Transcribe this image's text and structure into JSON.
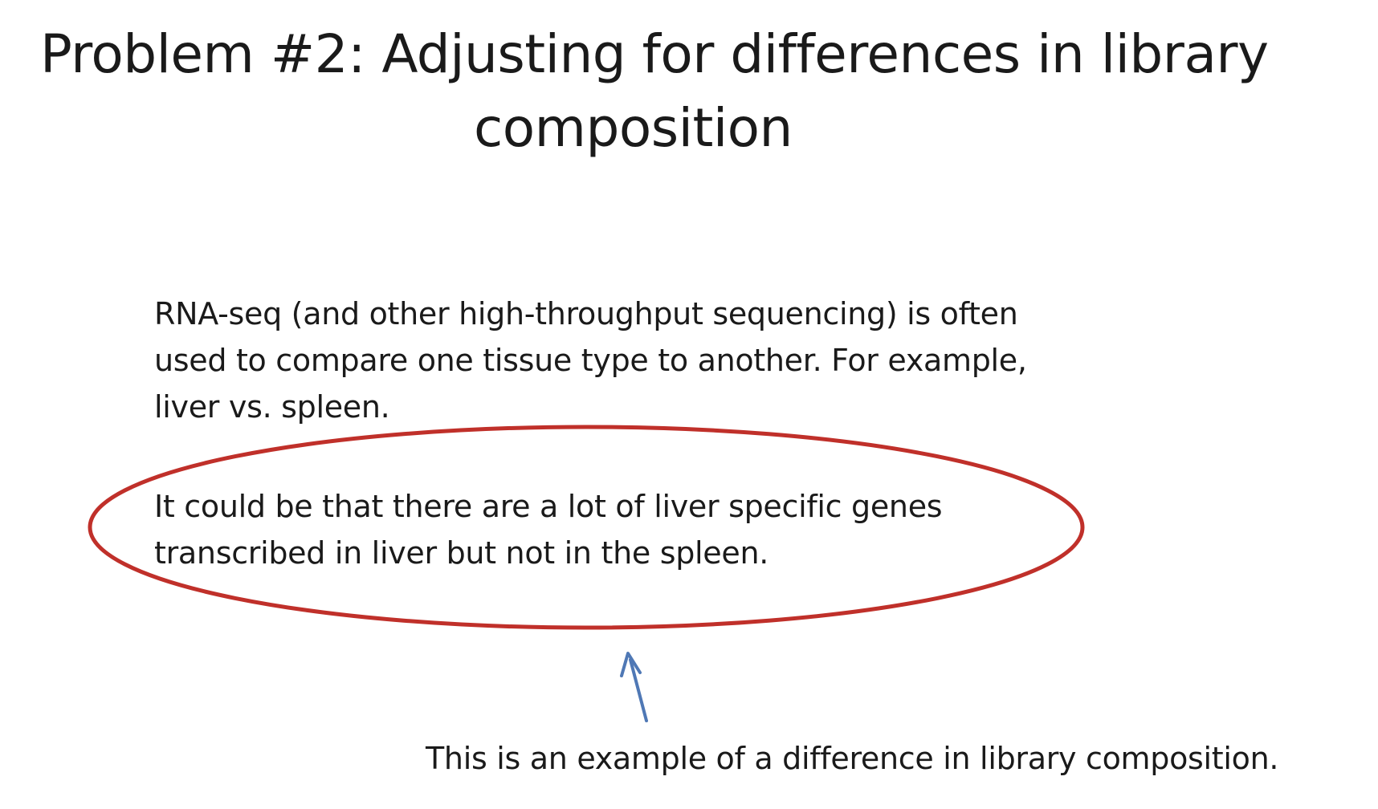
{
  "slide": {
    "title_line1": "Problem #2: Adjusting for differences in library",
    "title_line2": "composition",
    "paragraph1": [
      "RNA-seq (and other high-throughput sequencing) is often",
      "used to compare one tissue type to another. For example,",
      "liver vs. spleen."
    ],
    "paragraph2": [
      "It could be that there are a lot of liver specific genes",
      "transcribed in liver but not in the spleen."
    ],
    "caption": "This is an example of a difference in library composition.",
    "colors": {
      "text": "#1a1a1a",
      "ellipse": "#c0302a",
      "arrow": "#4f78b5",
      "background": "#ffffff"
    }
  }
}
